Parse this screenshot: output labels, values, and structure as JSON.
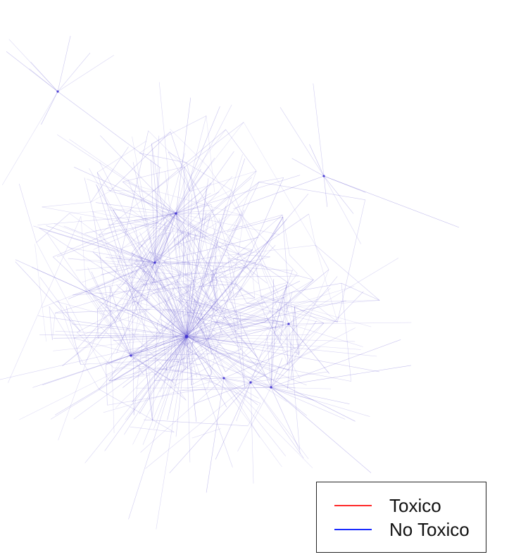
{
  "legend": {
    "items": [
      {
        "label": "Toxico",
        "color": "#ff2a2a"
      },
      {
        "label": "No Toxico",
        "color": "#1a2bff"
      }
    ]
  },
  "graph": {
    "edge_color": "#7a6fd6",
    "hub_color": "#3a2bd0"
  }
}
